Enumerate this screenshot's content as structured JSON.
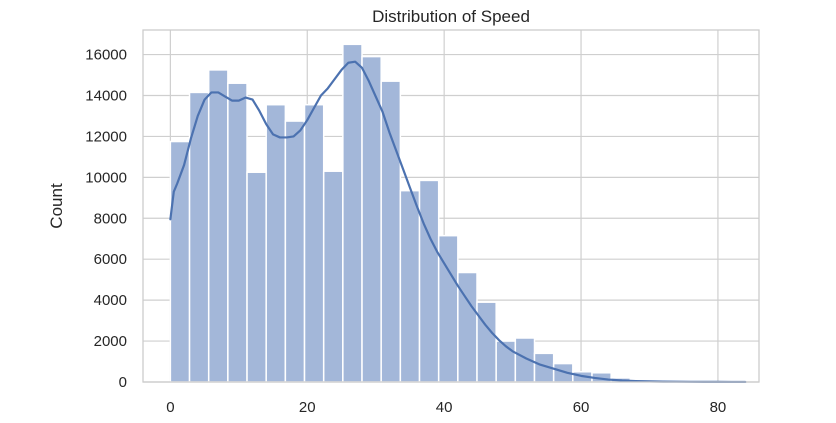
{
  "chart_data": {
    "type": "bar",
    "title": "Distribution of Speed",
    "xlabel": "",
    "ylabel": "Count",
    "xlim": [
      -4,
      86
    ],
    "ylim": [
      0,
      17200
    ],
    "grid": true,
    "x_ticks": [
      0,
      20,
      40,
      60,
      80
    ],
    "y_ticks": [
      0,
      2000,
      4000,
      6000,
      8000,
      10000,
      12000,
      14000,
      16000
    ],
    "bin_width": 2.8,
    "bins": [
      {
        "x0": 0.0,
        "x1": 2.8,
        "value": 11750
      },
      {
        "x0": 2.8,
        "x1": 5.6,
        "value": 14150
      },
      {
        "x0": 5.6,
        "x1": 8.4,
        "value": 15250
      },
      {
        "x0": 8.4,
        "x1": 11.2,
        "value": 14600
      },
      {
        "x0": 11.2,
        "x1": 14.0,
        "value": 10250
      },
      {
        "x0": 14.0,
        "x1": 16.8,
        "value": 13550
      },
      {
        "x0": 16.8,
        "x1": 19.6,
        "value": 12750
      },
      {
        "x0": 19.6,
        "x1": 22.4,
        "value": 13550
      },
      {
        "x0": 22.4,
        "x1": 25.2,
        "value": 10300
      },
      {
        "x0": 25.2,
        "x1": 28.0,
        "value": 16500
      },
      {
        "x0": 28.0,
        "x1": 30.8,
        "value": 15900
      },
      {
        "x0": 30.8,
        "x1": 33.6,
        "value": 14700
      },
      {
        "x0": 33.6,
        "x1": 36.4,
        "value": 9350
      },
      {
        "x0": 36.4,
        "x1": 39.2,
        "value": 9850
      },
      {
        "x0": 39.2,
        "x1": 42.0,
        "value": 7150
      },
      {
        "x0": 42.0,
        "x1": 44.8,
        "value": 5350
      },
      {
        "x0": 44.8,
        "x1": 47.6,
        "value": 3900
      },
      {
        "x0": 47.6,
        "x1": 50.4,
        "value": 2000
      },
      {
        "x0": 50.4,
        "x1": 53.2,
        "value": 2150
      },
      {
        "x0": 53.2,
        "x1": 56.0,
        "value": 1400
      },
      {
        "x0": 56.0,
        "x1": 58.8,
        "value": 900
      },
      {
        "x0": 58.8,
        "x1": 61.6,
        "value": 500
      },
      {
        "x0": 61.6,
        "x1": 64.4,
        "value": 450
      },
      {
        "x0": 64.4,
        "x1": 67.2,
        "value": 200
      },
      {
        "x0": 67.2,
        "x1": 70.0,
        "value": 90
      },
      {
        "x0": 70.0,
        "x1": 72.8,
        "value": 50
      },
      {
        "x0": 72.8,
        "x1": 75.6,
        "value": 30
      },
      {
        "x0": 75.6,
        "x1": 78.4,
        "value": 20
      },
      {
        "x0": 78.4,
        "x1": 81.2,
        "value": 15
      },
      {
        "x0": 81.2,
        "x1": 84.0,
        "value": 10
      }
    ],
    "kde": {
      "x": [
        0,
        0.5,
        1,
        2,
        3,
        4,
        5,
        6,
        7,
        8,
        9,
        10,
        11,
        12,
        13,
        14,
        15,
        16,
        17,
        18,
        19,
        20,
        21,
        22,
        23,
        24,
        25,
        26,
        27,
        28,
        29,
        30,
        31,
        32,
        33,
        34,
        35,
        36,
        37,
        38,
        39,
        40,
        41,
        42,
        43,
        44,
        45,
        46,
        47,
        48,
        49,
        50,
        52,
        54,
        56,
        58,
        60,
        62,
        64,
        66,
        68,
        70,
        72,
        74,
        76,
        78,
        80,
        82,
        84
      ],
      "y": [
        7950,
        9300,
        9700,
        10600,
        11900,
        13000,
        13800,
        14150,
        14150,
        13950,
        13750,
        13750,
        13900,
        13800,
        13250,
        12600,
        12100,
        11950,
        11950,
        12000,
        12300,
        12800,
        13400,
        14000,
        14350,
        14800,
        15250,
        15600,
        15650,
        15350,
        14700,
        13950,
        13200,
        12200,
        11300,
        10400,
        9500,
        8600,
        7750,
        7000,
        6350,
        5800,
        5250,
        4700,
        4200,
        3700,
        3250,
        2800,
        2400,
        2050,
        1750,
        1500,
        1150,
        850,
        650,
        450,
        300,
        200,
        120,
        75,
        45,
        30,
        20,
        15,
        10,
        7,
        5,
        3,
        2
      ]
    },
    "colors": {
      "bar_fill": "#a3b7d9",
      "bar_edge": "#ffffff",
      "kde_line": "#4c72b0",
      "grid": "#cfcfcf",
      "spine": "#cccccc",
      "text": "#262626"
    }
  }
}
